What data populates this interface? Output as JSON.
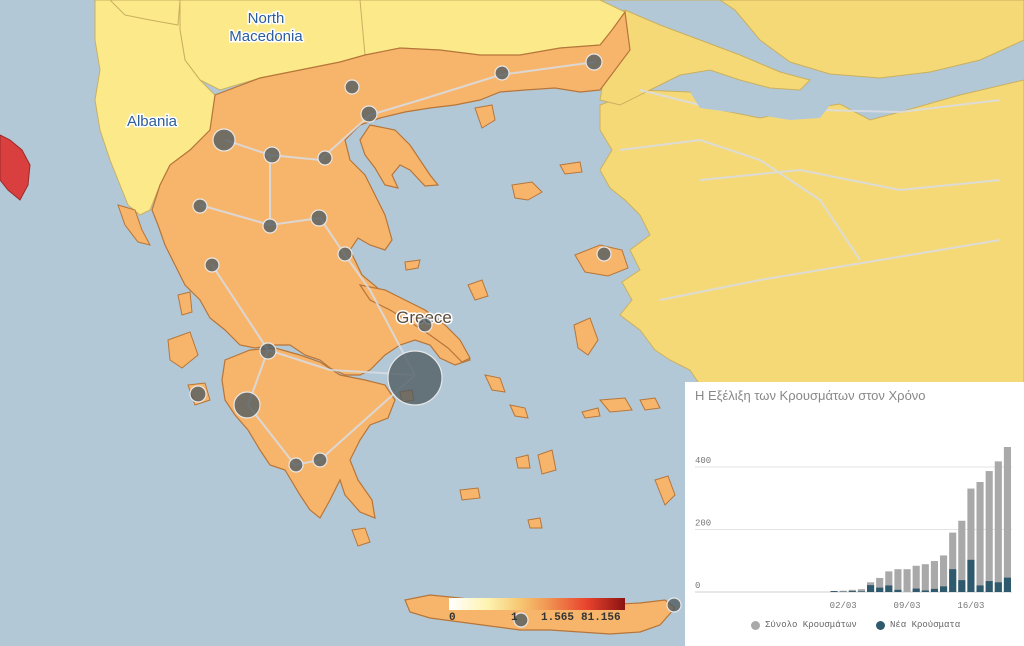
{
  "map": {
    "labels": {
      "north_macedonia_line1": "North",
      "north_macedonia_line2": "Macedonia",
      "albania": "Albania",
      "greece": "Greece"
    },
    "colors": {
      "sea": "#b3c8d6",
      "greece_fill": "#f7b56c",
      "neighbor_fill": "#fbe98a",
      "turkey_fill": "#f6d977",
      "italy_fill": "#d93f3f",
      "bubble": "#4e5a60"
    },
    "legend": {
      "ticks": [
        "0",
        "1",
        "1.565",
        "81.156"
      ]
    }
  },
  "chart": {
    "title": "Η Εξέλιξη των Κρουσμάτων στον Χρόνο",
    "legend": [
      "Σύνολο Κρουσμάτων",
      "Νέα Κρούσματα"
    ],
    "colors": {
      "total": "#a9a9a9",
      "new": "#2f5a6e"
    }
  },
  "chart_data": {
    "type": "bar",
    "title": "Η Εξέλιξη των Κρουσμάτων στον Χρόνο",
    "categories": [
      "26/02",
      "27/02",
      "28/02",
      "29/02",
      "01/03",
      "02/03",
      "03/03",
      "04/03",
      "05/03",
      "06/03",
      "07/03",
      "08/03",
      "09/03",
      "10/03",
      "11/03",
      "12/03",
      "13/03",
      "14/03",
      "15/03",
      "16/03",
      "17/03",
      "18/03",
      "19/03",
      "20/03"
    ],
    "x_tick_labels": [
      "02/03",
      "09/03",
      "16/03"
    ],
    "y_tick_labels": [
      "0",
      "200",
      "400"
    ],
    "ylim": [
      0,
      480
    ],
    "series": [
      {
        "name": "Σύνολο Κρουσμάτων",
        "values": [
          0,
          0,
          0,
          0,
          3,
          4,
          7,
          9,
          31,
          45,
          66,
          73,
          73,
          84,
          89,
          99,
          117,
          190,
          228,
          331,
          352,
          387,
          418,
          464
        ]
      },
      {
        "name": "Νέα Κρούσματα",
        "values": [
          0,
          0,
          0,
          0,
          3,
          1,
          3,
          2,
          22,
          14,
          21,
          7,
          0,
          11,
          5,
          10,
          18,
          73,
          38,
          103,
          21,
          35,
          31,
          46
        ]
      }
    ],
    "legend_position": "bottom",
    "grid": true
  }
}
